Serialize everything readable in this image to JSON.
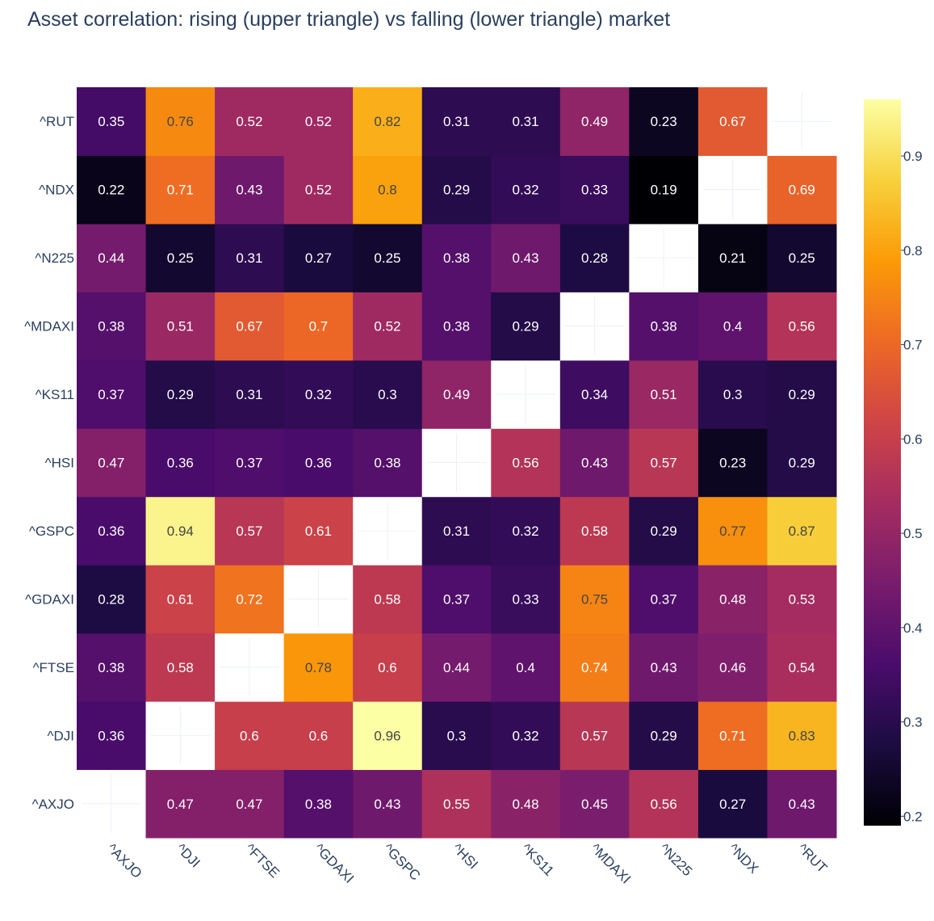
{
  "chart_data": {
    "type": "heatmap",
    "title": "Asset correlation: rising (upper triangle) vs falling (lower triangle) market",
    "x": [
      "^AXJO",
      "^DJI",
      "^FTSE",
      "^GDAXI",
      "^GSPC",
      "^HSI",
      "^KS11",
      "^MDAXI",
      "^N225",
      "^NDX",
      "^RUT"
    ],
    "y": [
      "^AXJO",
      "^DJI",
      "^FTSE",
      "^GDAXI",
      "^GSPC",
      "^HSI",
      "^KS11",
      "^MDAXI",
      "^N225",
      "^NDX",
      "^RUT"
    ],
    "z": [
      [
        null,
        0.47,
        0.47,
        0.38,
        0.43,
        0.55,
        0.48,
        0.45,
        0.56,
        0.27,
        0.43
      ],
      [
        0.36,
        null,
        0.6,
        0.6,
        0.96,
        0.3,
        0.32,
        0.57,
        0.29,
        0.71,
        0.83
      ],
      [
        0.38,
        0.58,
        null,
        0.78,
        0.6,
        0.44,
        0.4,
        0.74,
        0.43,
        0.46,
        0.54
      ],
      [
        0.28,
        0.61,
        0.72,
        null,
        0.58,
        0.37,
        0.33,
        0.75,
        0.37,
        0.48,
        0.53
      ],
      [
        0.36,
        0.94,
        0.57,
        0.61,
        null,
        0.31,
        0.32,
        0.58,
        0.29,
        0.77,
        0.87
      ],
      [
        0.47,
        0.36,
        0.37,
        0.36,
        0.38,
        null,
        0.56,
        0.43,
        0.57,
        0.23,
        0.29
      ],
      [
        0.37,
        0.29,
        0.31,
        0.32,
        0.3,
        0.49,
        null,
        0.34,
        0.51,
        0.3,
        0.29
      ],
      [
        0.38,
        0.51,
        0.67,
        0.7,
        0.52,
        0.38,
        0.29,
        null,
        0.38,
        0.4,
        0.56
      ],
      [
        0.44,
        0.25,
        0.31,
        0.27,
        0.25,
        0.38,
        0.43,
        0.28,
        null,
        0.21,
        0.25
      ],
      [
        0.22,
        0.71,
        0.43,
        0.52,
        0.8,
        0.29,
        0.32,
        0.33,
        0.19,
        null,
        0.69
      ],
      [
        0.35,
        0.76,
        0.52,
        0.52,
        0.82,
        0.31,
        0.31,
        0.49,
        0.23,
        0.67,
        null
      ]
    ],
    "zmin": 0.19,
    "zmax": 0.96,
    "colorscale": "inferno",
    "colorbar_ticks": [
      0.2,
      0.3,
      0.4,
      0.5,
      0.6,
      0.7,
      0.8,
      0.9
    ],
    "diagonal": "empty"
  }
}
